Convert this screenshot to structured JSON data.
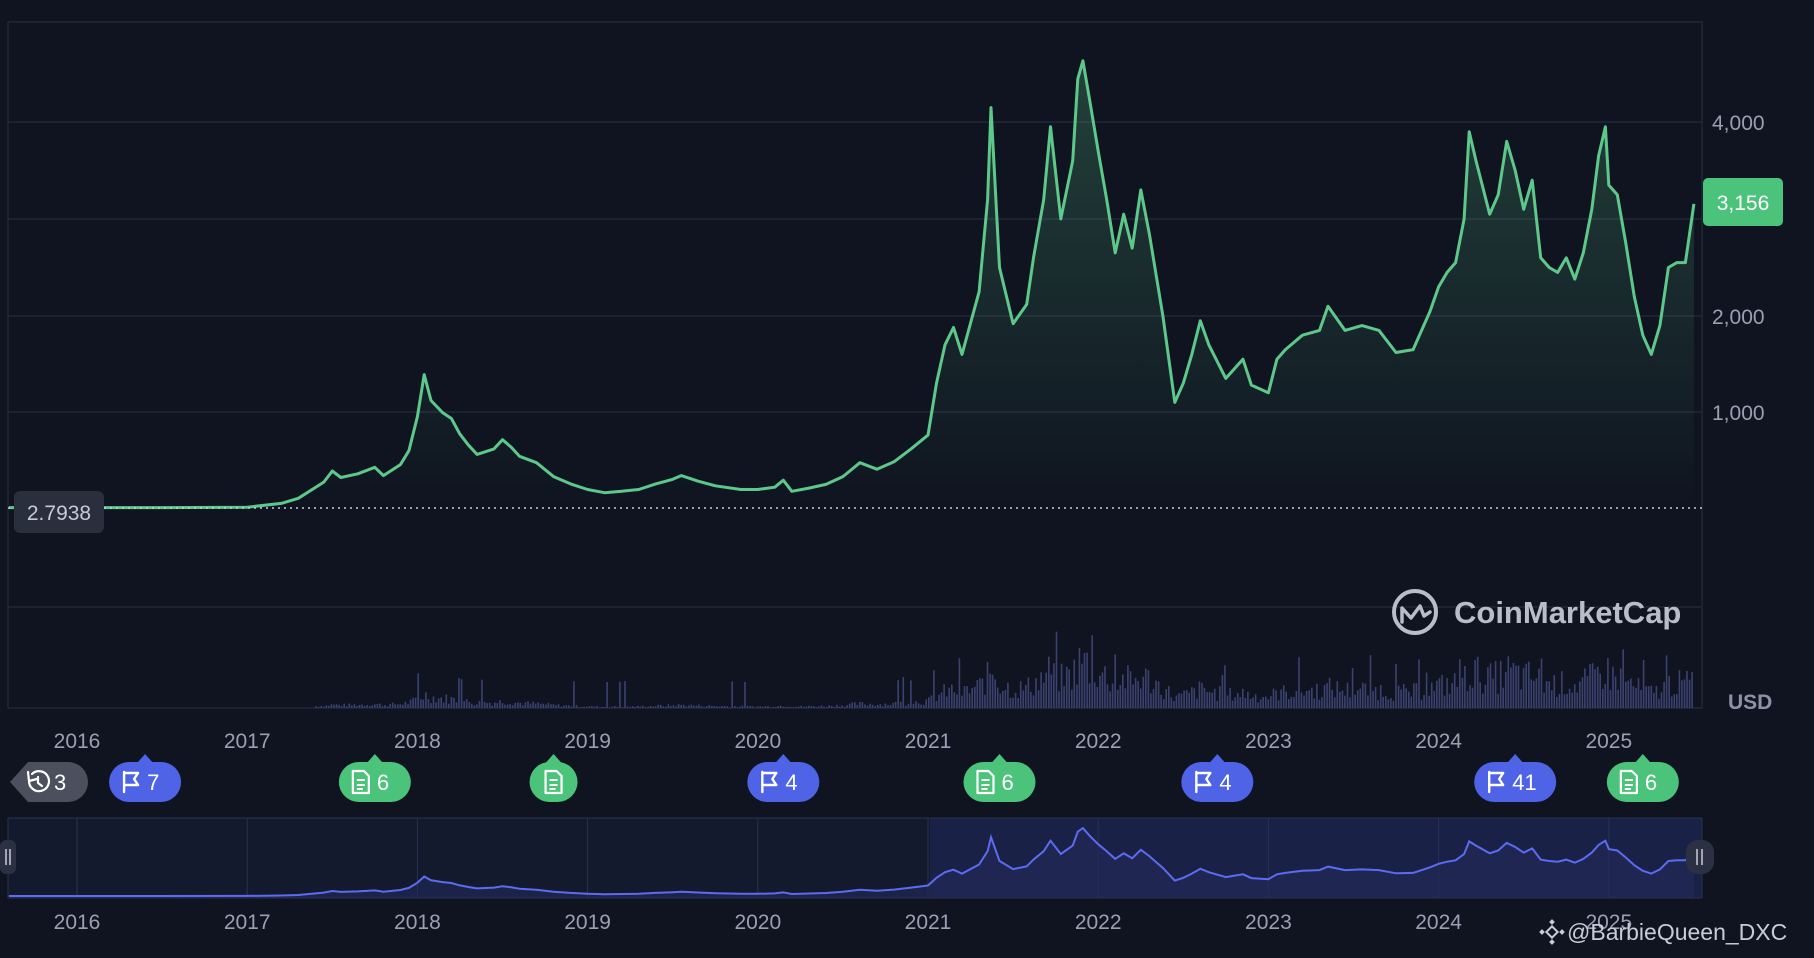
{
  "chart_data": {
    "type": "area",
    "x_ticks": [
      "2016",
      "2017",
      "2018",
      "2019",
      "2020",
      "2021",
      "2022",
      "2023",
      "2024",
      "2025"
    ],
    "y_ticks": [
      1000,
      2000,
      4000
    ],
    "y_tick_labels": [
      "1,000",
      "2,000",
      "4,000"
    ],
    "yaxis_scale": "compressed-log",
    "yaxis_unit": "USD",
    "current_price_label": "3,156",
    "current_price": 3156,
    "start_price_label": "2.7938",
    "start_price": 2.7938,
    "grid": true,
    "colors": {
      "line": "#5ec88a",
      "volume": "#3b4270",
      "navigator_line": "#5b6cf0",
      "navigator_fill": "#1d2450",
      "price_badge": "#4cc37a",
      "flag_pill": "#4e63e6",
      "doc_pill": "#4cc37a",
      "history_pill": "#4b4f5e"
    },
    "series": [
      {
        "values": [
          [
            2015.6,
            2.8
          ],
          [
            2016.0,
            2.8
          ],
          [
            2016.5,
            3.0
          ],
          [
            2017.0,
            6
          ],
          [
            2017.2,
            35
          ],
          [
            2017.3,
            75
          ],
          [
            2017.45,
            240
          ],
          [
            2017.5,
            360
          ],
          [
            2017.55,
            290
          ],
          [
            2017.65,
            330
          ],
          [
            2017.75,
            400
          ],
          [
            2017.8,
            310
          ],
          [
            2017.9,
            430
          ],
          [
            2017.95,
            580
          ],
          [
            2018.0,
            950
          ],
          [
            2018.04,
            1390
          ],
          [
            2018.08,
            1120
          ],
          [
            2018.15,
            990
          ],
          [
            2018.2,
            930
          ],
          [
            2018.25,
            760
          ],
          [
            2018.3,
            640
          ],
          [
            2018.35,
            540
          ],
          [
            2018.45,
            600
          ],
          [
            2018.5,
            700
          ],
          [
            2018.55,
            620
          ],
          [
            2018.6,
            520
          ],
          [
            2018.7,
            450
          ],
          [
            2018.8,
            300
          ],
          [
            2018.9,
            220
          ],
          [
            2019.0,
            160
          ],
          [
            2019.1,
            125
          ],
          [
            2019.2,
            140
          ],
          [
            2019.3,
            160
          ],
          [
            2019.4,
            220
          ],
          [
            2019.5,
            270
          ],
          [
            2019.55,
            310
          ],
          [
            2019.65,
            250
          ],
          [
            2019.75,
            200
          ],
          [
            2019.9,
            160
          ],
          [
            2020.0,
            160
          ],
          [
            2020.1,
            185
          ],
          [
            2020.15,
            260
          ],
          [
            2020.2,
            140
          ],
          [
            2020.3,
            175
          ],
          [
            2020.4,
            215
          ],
          [
            2020.5,
            300
          ],
          [
            2020.6,
            450
          ],
          [
            2020.7,
            380
          ],
          [
            2020.8,
            460
          ],
          [
            2020.9,
            600
          ],
          [
            2021.0,
            750
          ],
          [
            2021.05,
            1300
          ],
          [
            2021.1,
            1700
          ],
          [
            2021.15,
            1880
          ],
          [
            2021.2,
            1600
          ],
          [
            2021.3,
            2250
          ],
          [
            2021.35,
            3200
          ],
          [
            2021.37,
            4200
          ],
          [
            2021.42,
            2500
          ],
          [
            2021.5,
            1920
          ],
          [
            2021.58,
            2120
          ],
          [
            2021.62,
            2600
          ],
          [
            2021.68,
            3200
          ],
          [
            2021.72,
            3950
          ],
          [
            2021.78,
            3000
          ],
          [
            2021.85,
            3600
          ],
          [
            2021.88,
            4600
          ],
          [
            2021.91,
            4850
          ],
          [
            2021.95,
            4300
          ],
          [
            2022.0,
            3700
          ],
          [
            2022.05,
            3200
          ],
          [
            2022.1,
            2650
          ],
          [
            2022.15,
            3050
          ],
          [
            2022.2,
            2700
          ],
          [
            2022.25,
            3300
          ],
          [
            2022.3,
            2850
          ],
          [
            2022.38,
            2000
          ],
          [
            2022.45,
            1100
          ],
          [
            2022.5,
            1300
          ],
          [
            2022.55,
            1600
          ],
          [
            2022.6,
            1950
          ],
          [
            2022.65,
            1700
          ],
          [
            2022.75,
            1350
          ],
          [
            2022.85,
            1550
          ],
          [
            2022.9,
            1280
          ],
          [
            2023.0,
            1200
          ],
          [
            2023.05,
            1550
          ],
          [
            2023.1,
            1650
          ],
          [
            2023.2,
            1800
          ],
          [
            2023.3,
            1850
          ],
          [
            2023.35,
            2100
          ],
          [
            2023.45,
            1850
          ],
          [
            2023.55,
            1900
          ],
          [
            2023.65,
            1850
          ],
          [
            2023.75,
            1620
          ],
          [
            2023.85,
            1650
          ],
          [
            2023.95,
            2050
          ],
          [
            2024.0,
            2300
          ],
          [
            2024.05,
            2450
          ],
          [
            2024.1,
            2550
          ],
          [
            2024.15,
            3000
          ],
          [
            2024.18,
            3900
          ],
          [
            2024.22,
            3600
          ],
          [
            2024.3,
            3050
          ],
          [
            2024.35,
            3250
          ],
          [
            2024.4,
            3800
          ],
          [
            2024.45,
            3500
          ],
          [
            2024.5,
            3100
          ],
          [
            2024.55,
            3400
          ],
          [
            2024.6,
            2600
          ],
          [
            2024.65,
            2500
          ],
          [
            2024.7,
            2450
          ],
          [
            2024.75,
            2600
          ],
          [
            2024.8,
            2380
          ],
          [
            2024.85,
            2650
          ],
          [
            2024.9,
            3100
          ],
          [
            2024.94,
            3650
          ],
          [
            2024.98,
            3950
          ],
          [
            2025.0,
            3350
          ],
          [
            2025.05,
            3250
          ],
          [
            2025.1,
            2750
          ],
          [
            2025.15,
            2200
          ],
          [
            2025.2,
            1800
          ],
          [
            2025.25,
            1600
          ],
          [
            2025.3,
            1900
          ],
          [
            2025.35,
            2500
          ],
          [
            2025.4,
            2550
          ],
          [
            2025.45,
            2550
          ],
          [
            2025.5,
            3156
          ]
        ]
      }
    ]
  },
  "axis_label_usd": "USD",
  "event_pills": [
    {
      "icon": "history-icon",
      "count": "3",
      "year": 2015.55,
      "kind": "history"
    },
    {
      "icon": "flag-icon",
      "count": "7",
      "year": 2016.4,
      "kind": "flag"
    },
    {
      "icon": "document-icon",
      "count": "6",
      "year": 2017.75,
      "kind": "doc"
    },
    {
      "icon": "document-icon",
      "count": "",
      "year": 2018.8,
      "kind": "doc"
    },
    {
      "icon": "flag-icon",
      "count": "4",
      "year": 2020.15,
      "kind": "flag"
    },
    {
      "icon": "document-icon",
      "count": "6",
      "year": 2021.42,
      "kind": "doc"
    },
    {
      "icon": "flag-icon",
      "count": "4",
      "year": 2022.7,
      "kind": "flag"
    },
    {
      "icon": "flag-icon",
      "count": "41",
      "year": 2024.45,
      "kind": "flag"
    },
    {
      "icon": "document-icon",
      "count": "6",
      "year": 2025.2,
      "kind": "doc"
    }
  ],
  "watermark": "CoinMarketCap",
  "credit": "@BarbieQueen_DXC"
}
